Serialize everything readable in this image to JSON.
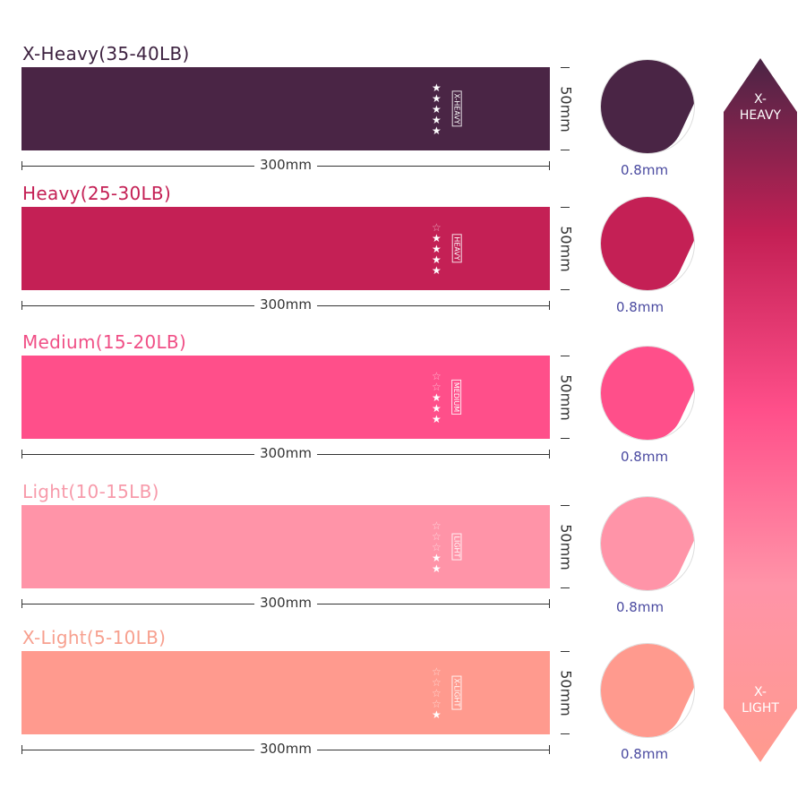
{
  "bands": [
    {
      "title": "X-Heavy(35-40LB)",
      "tag": "X-HEAVY",
      "stars_filled": 5,
      "stars_total": 5,
      "length": "300mm",
      "width": "50mm",
      "thickness": "0.8mm",
      "color": "#4a2545",
      "title_color": "#3d2240"
    },
    {
      "title": "Heavy(25-30LB)",
      "tag": "HEAVY",
      "stars_filled": 4,
      "stars_total": 5,
      "length": "300mm",
      "width": "50mm",
      "thickness": "0.8mm",
      "color": "#c42055",
      "title_color": "#c42055"
    },
    {
      "title": "Medium(15-20LB)",
      "tag": "MEDIUM",
      "stars_filled": 3,
      "stars_total": 5,
      "length": "300mm",
      "width": "50mm",
      "thickness": "0.8mm",
      "color": "#ff4f8a",
      "title_color": "#f04f86"
    },
    {
      "title": "Light(10-15LB)",
      "tag": "LIGHT",
      "stars_filled": 2,
      "stars_total": 5,
      "length": "300mm",
      "width": "50mm",
      "thickness": "0.8mm",
      "color": "#ff94a8",
      "title_color": "#f79aaa"
    },
    {
      "title": "X-Light(5-10LB)",
      "tag": "X-LIGHT",
      "stars_filled": 1,
      "stars_total": 5,
      "length": "300mm",
      "width": "50mm",
      "thickness": "0.8mm",
      "color": "#ff9a8e",
      "title_color": "#f7a08f"
    }
  ],
  "scale": {
    "top_label": "X-\nHEAVY",
    "bottom_label": "X-\nLIGHT",
    "gradient": [
      "#4a2545",
      "#c42055",
      "#ff4f8a",
      "#ff94a8",
      "#ff9a8e"
    ]
  }
}
